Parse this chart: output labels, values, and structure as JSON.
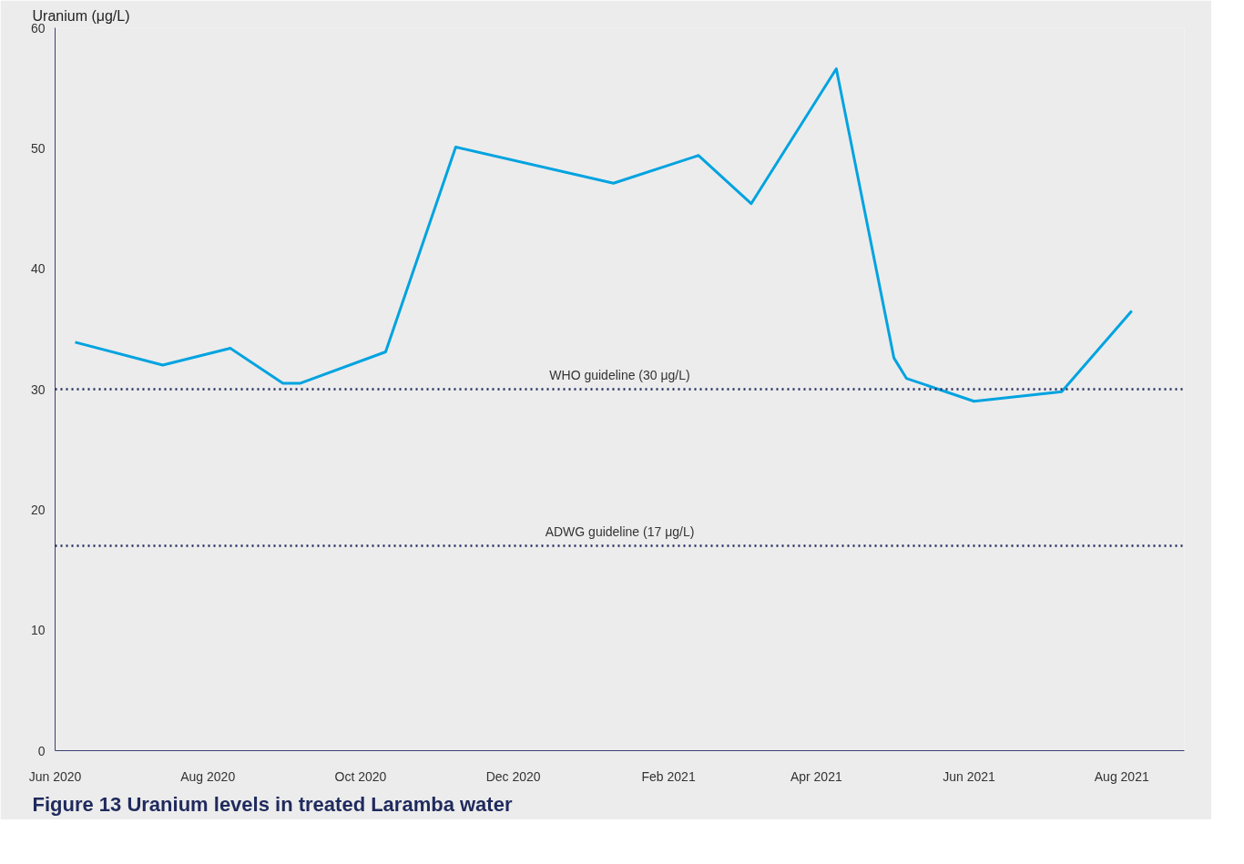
{
  "chart_data": {
    "type": "line",
    "title": "Figure 13 Uranium levels in treated Laramba water",
    "ylabel": "Uranium (μg/L)",
    "x": [
      "2020-06-09",
      "2020-07-14",
      "2020-08-10",
      "2020-08-31",
      "2020-09-07",
      "2020-10-11",
      "2020-11-08",
      "2021-01-10",
      "2021-02-13",
      "2021-03-06",
      "2021-04-09",
      "2021-05-02",
      "2021-05-07",
      "2021-06-03",
      "2021-07-08",
      "2021-08-05"
    ],
    "series": [
      {
        "color": "#00a3e0",
        "values": [
          33.9,
          32.0,
          33.4,
          30.5,
          30.5,
          33.1,
          50.1,
          47.1,
          49.4,
          45.4,
          56.6,
          32.6,
          30.9,
          29.0,
          29.8,
          36.5
        ]
      }
    ],
    "xlim": [
      "2020-06-01",
      "2021-08-26"
    ],
    "xticks": [
      {
        "value": "2020-06-01",
        "label": "Jun 2020"
      },
      {
        "value": "2020-08-01",
        "label": "Aug 2020"
      },
      {
        "value": "2020-10-01",
        "label": "Oct 2020"
      },
      {
        "value": "2020-12-01",
        "label": "Dec 2020"
      },
      {
        "value": "2021-02-01",
        "label": "Feb 2021"
      },
      {
        "value": "2021-04-01",
        "label": "Apr 2021"
      },
      {
        "value": "2021-06-01",
        "label": "Jun 2021"
      },
      {
        "value": "2021-08-01",
        "label": "Aug 2021"
      }
    ],
    "ylim": [
      0,
      60
    ],
    "yticks": [
      0,
      10,
      20,
      30,
      40,
      50,
      60
    ],
    "ref_lines": [
      {
        "axis": "y",
        "value": 30,
        "label": "WHO guideline (30 μg/L)",
        "color": "#1f2a5c",
        "line_style": "dotted"
      },
      {
        "axis": "y",
        "value": 17,
        "label": "ADWG guideline (17 μg/L)",
        "color": "#1f2a5c",
        "line_style": "dotted"
      }
    ],
    "grid": false,
    "marker": "none",
    "line_style": "solid"
  }
}
